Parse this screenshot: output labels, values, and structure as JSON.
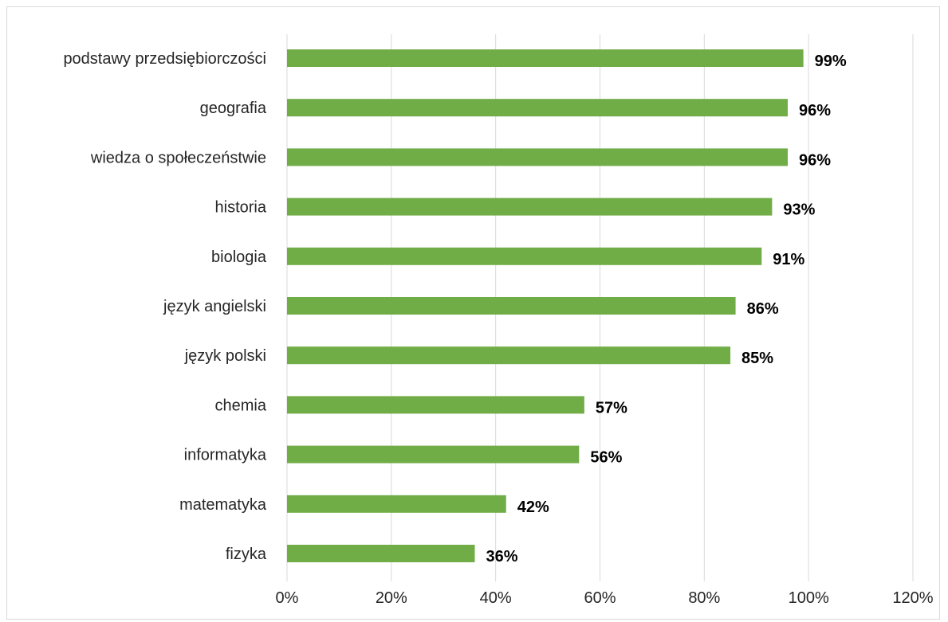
{
  "chart_data": {
    "type": "bar",
    "orientation": "horizontal",
    "categories": [
      "podstawy przedsiębiorczości",
      "geografia",
      "wiedza o społeczeństwie",
      "historia",
      "biologia",
      "język angielski",
      "język polski",
      "chemia",
      "informatyka",
      "matematyka",
      "fizyka"
    ],
    "values": [
      99,
      96,
      96,
      93,
      91,
      86,
      85,
      57,
      56,
      42,
      36
    ],
    "value_labels": [
      "99%",
      "96%",
      "96%",
      "93%",
      "91%",
      "86%",
      "85%",
      "57%",
      "56%",
      "42%",
      "36%"
    ],
    "xlim": [
      0,
      120
    ],
    "x_ticks": [
      0,
      20,
      40,
      60,
      80,
      100,
      120
    ],
    "x_tick_labels": [
      "0%",
      "20%",
      "40%",
      "60%",
      "80%",
      "100%",
      "120%"
    ],
    "grid": "vertical",
    "legend": "none",
    "colors": {
      "bar": "#70ad47",
      "grid": "#d9d9d9",
      "text": "#262626",
      "value_text": "#000000"
    }
  }
}
